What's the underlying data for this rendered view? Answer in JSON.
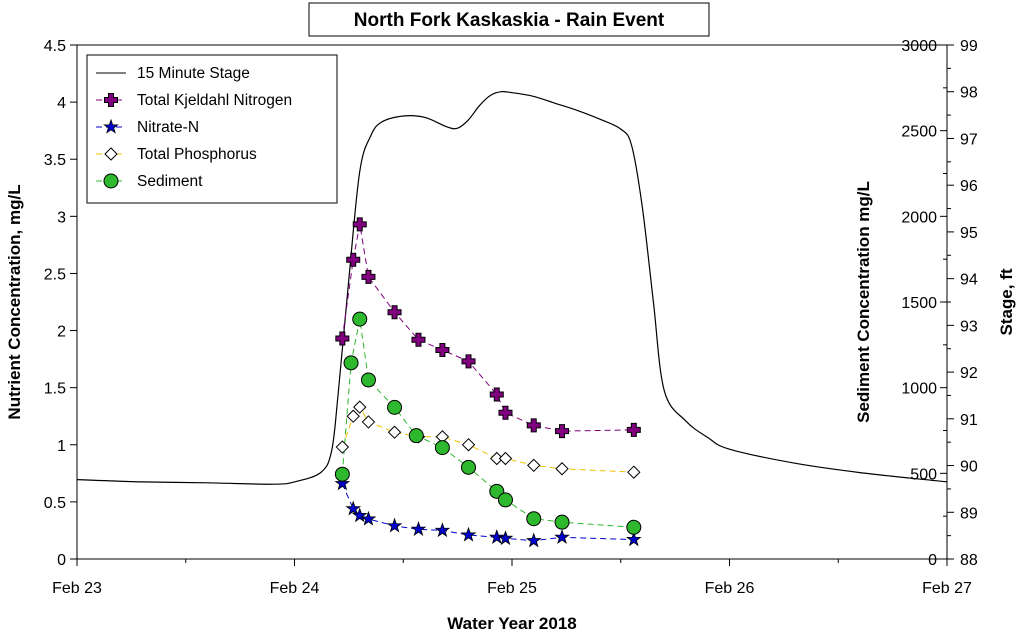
{
  "chart_data": {
    "type": "line",
    "title": "North Fork Kaskaskia - Rain Event",
    "xlabel": "Water Year 2018",
    "ylabel_left": "Nutrient Concentration, mg/L",
    "ylabel_right1": "Sediment Concentration mg/L",
    "ylabel_right2": "Stage, ft",
    "x_ticks": [
      "Feb 23",
      "Feb 24",
      "Feb 25",
      "Feb 26",
      "Feb 27"
    ],
    "xlim": [
      0,
      4
    ],
    "ylim_left": [
      0,
      4.5
    ],
    "yticks_left": [
      "0",
      "0.5",
      "1",
      "1.5",
      "2",
      "2.5",
      "3",
      "3.5",
      "4",
      "4.5"
    ],
    "ylim_sediment": [
      0,
      3000
    ],
    "yticks_sediment": [
      "0",
      "500",
      "1000",
      "1500",
      "2000",
      "2500",
      "3000"
    ],
    "ylim_stage": [
      88,
      99
    ],
    "yticks_stage": [
      "88",
      "89",
      "90",
      "91",
      "92",
      "93",
      "94",
      "95",
      "96",
      "97",
      "98",
      "99"
    ],
    "legend_position": "top-left",
    "grid": false,
    "series": [
      {
        "name": "15 Minute Stage",
        "axis": "stage",
        "color": "#000000",
        "marker": "none",
        "x": [
          0,
          0.3,
          0.6,
          0.9,
          1.0,
          1.12,
          1.17,
          1.2,
          1.25,
          1.3,
          1.35,
          1.4,
          1.5,
          1.6,
          1.7,
          1.75,
          1.8,
          1.85,
          1.9,
          1.95,
          2.0,
          2.1,
          2.2,
          2.3,
          2.4,
          2.5,
          2.55,
          2.6,
          2.65,
          2.7,
          2.8,
          2.9,
          3.0,
          3.3,
          3.6,
          4.0
        ],
        "y": [
          89.7,
          89.65,
          89.63,
          89.6,
          89.65,
          89.85,
          90.3,
          91.5,
          94.0,
          96.3,
          97.05,
          97.35,
          97.48,
          97.45,
          97.25,
          97.22,
          97.4,
          97.7,
          97.92,
          98.0,
          97.98,
          97.9,
          97.75,
          97.6,
          97.42,
          97.2,
          96.85,
          95.5,
          93.5,
          91.6,
          90.95,
          90.6,
          90.35,
          90.05,
          89.85,
          89.65
        ]
      },
      {
        "name": "Total Kjeldahl Nitrogen",
        "axis": "left",
        "color": "#800080",
        "marker": "cross",
        "x": [
          1.22,
          1.27,
          1.3,
          1.34,
          1.46,
          1.57,
          1.68,
          1.8,
          1.93,
          1.97,
          2.1,
          2.23,
          2.56
        ],
        "y": [
          1.93,
          2.62,
          2.93,
          2.47,
          2.16,
          1.92,
          1.83,
          1.73,
          1.44,
          1.28,
          1.17,
          1.12,
          1.13
        ]
      },
      {
        "name": "Nitrate-N",
        "axis": "left",
        "color": "#0000cc",
        "marker": "star",
        "x": [
          1.22,
          1.27,
          1.3,
          1.34,
          1.46,
          1.57,
          1.68,
          1.8,
          1.93,
          1.97,
          2.1,
          2.23,
          2.56
        ],
        "y": [
          0.66,
          0.44,
          0.38,
          0.35,
          0.29,
          0.26,
          0.25,
          0.21,
          0.19,
          0.18,
          0.16,
          0.19,
          0.17
        ]
      },
      {
        "name": "Total Phosphorus",
        "axis": "left",
        "color": "#f0c000",
        "marker": "diamond",
        "x": [
          1.22,
          1.27,
          1.3,
          1.34,
          1.46,
          1.57,
          1.68,
          1.8,
          1.93,
          1.97,
          2.1,
          2.23,
          2.56
        ],
        "y": [
          0.98,
          1.25,
          1.33,
          1.2,
          1.11,
          1.07,
          1.07,
          1.0,
          0.88,
          0.88,
          0.82,
          0.79,
          0.76
        ]
      },
      {
        "name": "Sediment",
        "axis": "sediment",
        "color": "#2db82d",
        "marker": "circle",
        "x": [
          1.22,
          1.26,
          1.3,
          1.34,
          1.46,
          1.56,
          1.68,
          1.8,
          1.93,
          1.97,
          2.1,
          2.23,
          2.56
        ],
        "y": [
          495,
          1145,
          1400,
          1045,
          885,
          720,
          650,
          535,
          395,
          345,
          235,
          215,
          185
        ]
      }
    ]
  }
}
